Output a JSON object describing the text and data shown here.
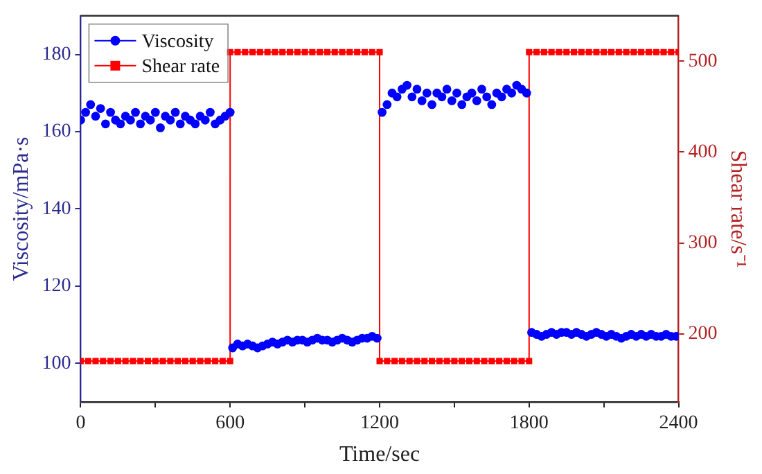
{
  "chart_data": {
    "type": "scatter",
    "xlabel": "Time/sec",
    "ylabel": "Viscosity/mPa·s",
    "y2label": "Shear rate/s⁻¹",
    "xlim": [
      0,
      2400
    ],
    "xticks": [
      0,
      {
        "value": 300,
        "label": null
      },
      600,
      {
        "value": 900,
        "label": null
      },
      1200,
      {
        "value": 1500,
        "label": null
      },
      1800,
      {
        "value": 2100,
        "label": null
      },
      2400
    ],
    "ylim": [
      90,
      190
    ],
    "yticks": [
      100,
      120,
      140,
      160,
      180
    ],
    "y2lim": [
      125,
      550
    ],
    "y2ticks": [
      200,
      300,
      400,
      500
    ],
    "legend": "top left",
    "grid": false,
    "series": [
      {
        "name": "Viscosity",
        "marker": "circle",
        "color": "#0000ff",
        "x": [
          0,
          20,
          40,
          60,
          80,
          100,
          120,
          140,
          160,
          180,
          200,
          220,
          240,
          260,
          280,
          300,
          320,
          340,
          360,
          380,
          400,
          420,
          440,
          460,
          480,
          500,
          520,
          540,
          560,
          580,
          600,
          610,
          630,
          650,
          670,
          690,
          710,
          730,
          750,
          770,
          790,
          810,
          830,
          850,
          870,
          890,
          910,
          930,
          950,
          970,
          990,
          1010,
          1030,
          1050,
          1070,
          1090,
          1110,
          1130,
          1150,
          1170,
          1190,
          1210,
          1230,
          1250,
          1270,
          1290,
          1310,
          1330,
          1350,
          1370,
          1390,
          1410,
          1430,
          1450,
          1470,
          1490,
          1510,
          1530,
          1550,
          1570,
          1590,
          1610,
          1630,
          1650,
          1670,
          1690,
          1710,
          1730,
          1750,
          1770,
          1790,
          1810,
          1830,
          1850,
          1870,
          1890,
          1910,
          1930,
          1950,
          1970,
          1990,
          2010,
          2030,
          2050,
          2070,
          2090,
          2110,
          2130,
          2150,
          2170,
          2190,
          2210,
          2230,
          2250,
          2270,
          2290,
          2310,
          2330,
          2350,
          2370,
          2390
        ],
        "values": [
          163,
          165,
          167,
          164,
          166,
          162,
          165,
          163,
          162,
          164,
          163,
          165,
          162,
          164,
          163,
          165,
          161,
          164,
          163,
          165,
          162,
          164,
          163,
          162,
          164,
          163,
          165,
          162,
          163,
          164,
          165,
          104,
          105,
          104.5,
          105,
          104.5,
          104,
          104.5,
          105,
          105.5,
          105,
          105.5,
          106,
          105.5,
          106,
          106,
          105.5,
          106,
          106.5,
          106,
          106,
          105.5,
          106,
          106.5,
          106,
          105.5,
          106,
          106.5,
          106.5,
          107,
          106.5,
          165,
          167,
          170,
          169,
          171,
          172,
          169,
          171,
          168,
          170,
          167,
          170,
          169,
          171,
          168,
          170,
          167,
          169,
          170,
          168,
          171,
          169,
          167,
          170,
          169,
          171,
          170,
          172,
          171,
          170,
          108,
          107.5,
          107,
          107.5,
          108,
          107.5,
          108,
          108,
          107.5,
          108,
          107.5,
          107,
          107.5,
          108,
          107.5,
          107,
          107.5,
          107,
          106.5,
          107,
          107.5,
          107,
          107.5,
          107,
          107.5,
          107,
          107,
          107.5,
          107,
          107
        ]
      },
      {
        "name": "Shear rate",
        "type": "line",
        "marker": "square",
        "color": "#ff0000",
        "axis": "y2",
        "x": [
          0,
          30,
          60,
          90,
          120,
          150,
          180,
          210,
          240,
          270,
          300,
          330,
          360,
          390,
          420,
          450,
          480,
          510,
          540,
          570,
          600,
          600,
          630,
          660,
          690,
          720,
          750,
          780,
          810,
          840,
          870,
          900,
          930,
          960,
          990,
          1020,
          1050,
          1080,
          1110,
          1140,
          1170,
          1200,
          1200,
          1230,
          1260,
          1290,
          1320,
          1350,
          1380,
          1410,
          1440,
          1470,
          1500,
          1530,
          1560,
          1590,
          1620,
          1650,
          1680,
          1710,
          1740,
          1770,
          1800,
          1800,
          1830,
          1860,
          1890,
          1920,
          1950,
          1980,
          2010,
          2040,
          2070,
          2100,
          2130,
          2160,
          2190,
          2220,
          2250,
          2280,
          2310,
          2340,
          2370,
          2400
        ],
        "values": [
          170,
          170,
          170,
          170,
          170,
          170,
          170,
          170,
          170,
          170,
          170,
          170,
          170,
          170,
          170,
          170,
          170,
          170,
          170,
          170,
          170,
          510,
          510,
          510,
          510,
          510,
          510,
          510,
          510,
          510,
          510,
          510,
          510,
          510,
          510,
          510,
          510,
          510,
          510,
          510,
          510,
          510,
          170,
          170,
          170,
          170,
          170,
          170,
          170,
          170,
          170,
          170,
          170,
          170,
          170,
          170,
          170,
          170,
          170,
          170,
          170,
          170,
          170,
          510,
          510,
          510,
          510,
          510,
          510,
          510,
          510,
          510,
          510,
          510,
          510,
          510,
          510,
          510,
          510,
          510,
          510,
          510,
          510,
          510
        ]
      }
    ]
  }
}
